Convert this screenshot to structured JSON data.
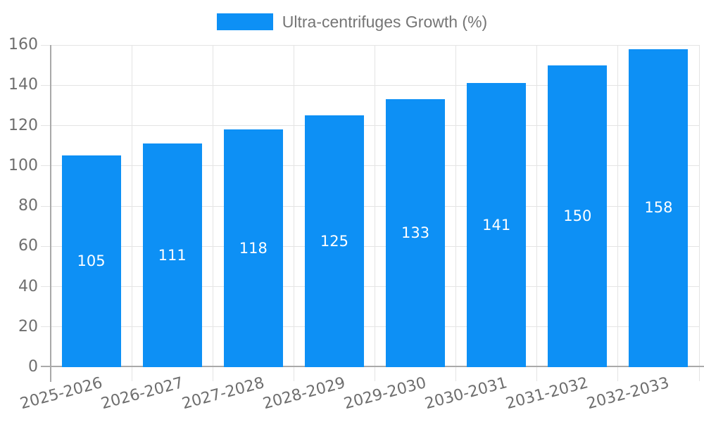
{
  "chart_data": {
    "type": "bar",
    "title": "Ultra-centrifuges Growth (%)",
    "categories": [
      "2025-2026",
      "2026-2027",
      "2027-2028",
      "2028-2029",
      "2029-2030",
      "2030-2031",
      "2031-2032",
      "2032-2033"
    ],
    "values": [
      105,
      111,
      118,
      125,
      133,
      141,
      150,
      158
    ],
    "xlabel": "",
    "ylabel": "",
    "ylim": [
      0,
      160
    ],
    "ytick_step": 20,
    "grid": true,
    "legend_position": "top-center",
    "value_labels": "inside-center",
    "colors": {
      "bar": "#0d90f5",
      "grid": "#e4e4e4",
      "axis_line": "#a9a9a9",
      "axis_text": "#6e6e6e",
      "legend_text": "#757575",
      "value_text": "#ffffff"
    }
  }
}
